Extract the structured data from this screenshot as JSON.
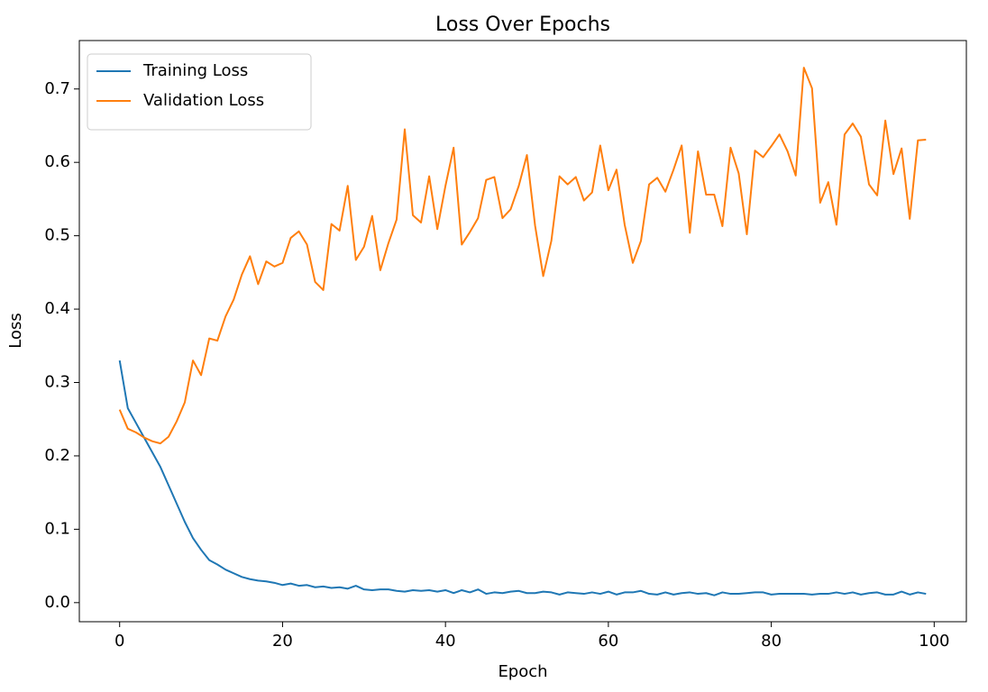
{
  "chart_data": {
    "type": "line",
    "title": "Loss Over Epochs",
    "x_label": "Epoch",
    "y_label": "Loss",
    "x": [
      0,
      1,
      2,
      3,
      4,
      5,
      6,
      7,
      8,
      9,
      10,
      11,
      12,
      13,
      14,
      15,
      16,
      17,
      18,
      19,
      20,
      21,
      22,
      23,
      24,
      25,
      26,
      27,
      28,
      29,
      30,
      31,
      32,
      33,
      34,
      35,
      36,
      37,
      38,
      39,
      40,
      41,
      42,
      43,
      44,
      45,
      46,
      47,
      48,
      49,
      50,
      51,
      52,
      53,
      54,
      55,
      56,
      57,
      58,
      59,
      60,
      61,
      62,
      63,
      64,
      65,
      66,
      67,
      68,
      69,
      70,
      71,
      72,
      73,
      74,
      75,
      76,
      77,
      78,
      79,
      80,
      81,
      82,
      83,
      84,
      85,
      86,
      87,
      88,
      89,
      90,
      91,
      92,
      93,
      94,
      95,
      96,
      97,
      98,
      99
    ],
    "series": [
      {
        "name": "Training Loss",
        "color": "#1f77b4",
        "values": [
          0.33,
          0.265,
          0.245,
          0.225,
          0.205,
          0.185,
          0.16,
          0.135,
          0.11,
          0.088,
          0.072,
          0.058,
          0.052,
          0.045,
          0.04,
          0.035,
          0.032,
          0.03,
          0.029,
          0.027,
          0.024,
          0.026,
          0.023,
          0.024,
          0.021,
          0.022,
          0.02,
          0.021,
          0.019,
          0.023,
          0.018,
          0.017,
          0.018,
          0.018,
          0.016,
          0.015,
          0.017,
          0.016,
          0.017,
          0.015,
          0.017,
          0.013,
          0.017,
          0.014,
          0.018,
          0.012,
          0.014,
          0.013,
          0.015,
          0.016,
          0.013,
          0.013,
          0.015,
          0.014,
          0.011,
          0.014,
          0.013,
          0.012,
          0.014,
          0.012,
          0.015,
          0.011,
          0.014,
          0.014,
          0.016,
          0.012,
          0.011,
          0.014,
          0.011,
          0.013,
          0.014,
          0.012,
          0.013,
          0.01,
          0.014,
          0.012,
          0.012,
          0.013,
          0.014,
          0.014,
          0.011,
          0.012,
          0.012,
          0.012,
          0.012,
          0.011,
          0.012,
          0.012,
          0.014,
          0.012,
          0.014,
          0.011,
          0.013,
          0.014,
          0.011,
          0.011,
          0.015,
          0.011,
          0.014,
          0.012
        ]
      },
      {
        "name": "Validation Loss",
        "color": "#ff7f0e",
        "values": [
          0.263,
          0.237,
          0.232,
          0.225,
          0.22,
          0.217,
          0.226,
          0.247,
          0.273,
          0.33,
          0.31,
          0.36,
          0.357,
          0.39,
          0.413,
          0.447,
          0.472,
          0.434,
          0.465,
          0.458,
          0.463,
          0.497,
          0.506,
          0.488,
          0.437,
          0.426,
          0.516,
          0.507,
          0.568,
          0.467,
          0.485,
          0.527,
          0.453,
          0.49,
          0.522,
          0.645,
          0.528,
          0.518,
          0.581,
          0.509,
          0.568,
          0.62,
          0.488,
          0.505,
          0.524,
          0.576,
          0.58,
          0.524,
          0.536,
          0.568,
          0.61,
          0.514,
          0.445,
          0.493,
          0.581,
          0.57,
          0.58,
          0.548,
          0.559,
          0.623,
          0.562,
          0.59,
          0.515,
          0.463,
          0.493,
          0.57,
          0.579,
          0.56,
          0.59,
          0.623,
          0.504,
          0.615,
          0.556,
          0.556,
          0.513,
          0.62,
          0.585,
          0.502,
          0.616,
          0.607,
          0.622,
          0.638,
          0.615,
          0.582,
          0.729,
          0.701,
          0.545,
          0.573,
          0.515,
          0.638,
          0.653,
          0.635,
          0.57,
          0.555,
          0.657,
          0.584,
          0.619,
          0.523,
          0.63,
          0.631
        ]
      }
    ],
    "xlim": [
      -4.95,
      103.95
    ],
    "ylim": [
      -0.026,
      0.766
    ],
    "xticks": [
      0,
      20,
      40,
      60,
      80,
      100
    ],
    "yticks": [
      {
        "value": 0,
        "label": "0.0"
      },
      0.1,
      0.2,
      0.3,
      0.4,
      0.5,
      0.6,
      0.7
    ],
    "legend": "upper left"
  }
}
